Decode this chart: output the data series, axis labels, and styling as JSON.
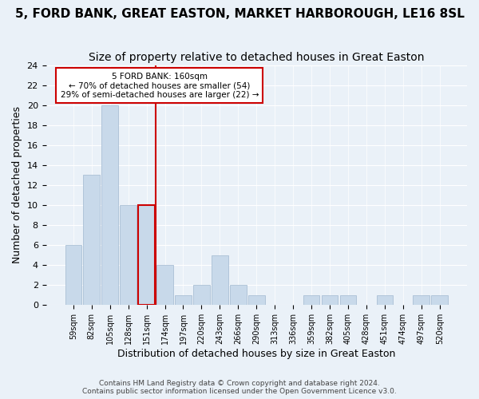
{
  "title": "5, FORD BANK, GREAT EASTON, MARKET HARBOROUGH, LE16 8SL",
  "subtitle": "Size of property relative to detached houses in Great Easton",
  "xlabel": "Distribution of detached houses by size in Great Easton",
  "ylabel": "Number of detached properties",
  "categories": [
    "59sqm",
    "82sqm",
    "105sqm",
    "128sqm",
    "151sqm",
    "174sqm",
    "197sqm",
    "220sqm",
    "243sqm",
    "266sqm",
    "290sqm",
    "313sqm",
    "336sqm",
    "359sqm",
    "382sqm",
    "405sqm",
    "428sqm",
    "451sqm",
    "474sqm",
    "497sqm",
    "520sqm"
  ],
  "values": [
    6,
    13,
    20,
    10,
    10,
    4,
    1,
    2,
    5,
    2,
    1,
    0,
    0,
    1,
    1,
    1,
    0,
    1,
    0,
    1,
    1
  ],
  "bar_color": "#c8d9ea",
  "bar_edge_color": "#a0b8d0",
  "highlight_index": 4,
  "highlight_line_color": "#cc0000",
  "annotation_line1": "5 FORD BANK: 160sqm",
  "annotation_line2": "← 70% of detached houses are smaller (54)",
  "annotation_line3": "29% of semi-detached houses are larger (22) →",
  "annotation_box_color": "white",
  "annotation_box_edge_color": "#cc0000",
  "ylim": [
    0,
    24
  ],
  "yticks": [
    0,
    2,
    4,
    6,
    8,
    10,
    12,
    14,
    16,
    18,
    20,
    22,
    24
  ],
  "footer1": "Contains HM Land Registry data © Crown copyright and database right 2024.",
  "footer2": "Contains public sector information licensed under the Open Government Licence v3.0.",
  "background_color": "#eaf1f8",
  "plot_background_color": "#eaf1f8",
  "title_fontsize": 11,
  "subtitle_fontsize": 10,
  "xlabel_fontsize": 9,
  "ylabel_fontsize": 9
}
